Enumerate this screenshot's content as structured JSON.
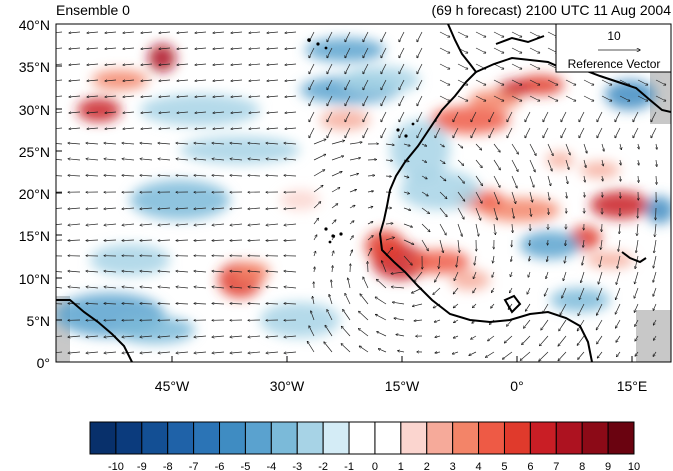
{
  "header": {
    "left_title": "Ensemble 0",
    "right_title": "(69 h forecast) 2100 UTC 11 Aug 2004"
  },
  "map": {
    "lat_labels": [
      "40°N",
      "35°N",
      "30°N",
      "25°N",
      "20°N",
      "15°N",
      "10°N",
      "5°N",
      "0°"
    ],
    "lon_labels": [
      "45°W",
      "30°W",
      "15°W",
      "0°",
      "15°E"
    ],
    "reference_vector": {
      "magnitude_label": "10",
      "caption": "Reference Vector"
    }
  },
  "colorbar": {
    "labels": [
      "-10",
      "-9",
      "-8",
      "-7",
      "-6",
      "-5",
      "-4",
      "-3",
      "-2",
      "-1",
      "0",
      "1",
      "2",
      "3",
      "4",
      "5",
      "6",
      "7",
      "8",
      "9",
      "10"
    ],
    "colors": [
      "#08306b",
      "#0b3b7d",
      "#134f94",
      "#1f62a8",
      "#2b74b6",
      "#3f8cc2",
      "#5aa2cf",
      "#7bbad9",
      "#a7d3e6",
      "#d4ecf6",
      "#ffffff",
      "#ffffff",
      "#fbd5cf",
      "#f6aa9a",
      "#f38468",
      "#ee5a45",
      "#e03a2c",
      "#c91e25",
      "#ad1220",
      "#8c0a17",
      "#6a0310"
    ]
  }
}
